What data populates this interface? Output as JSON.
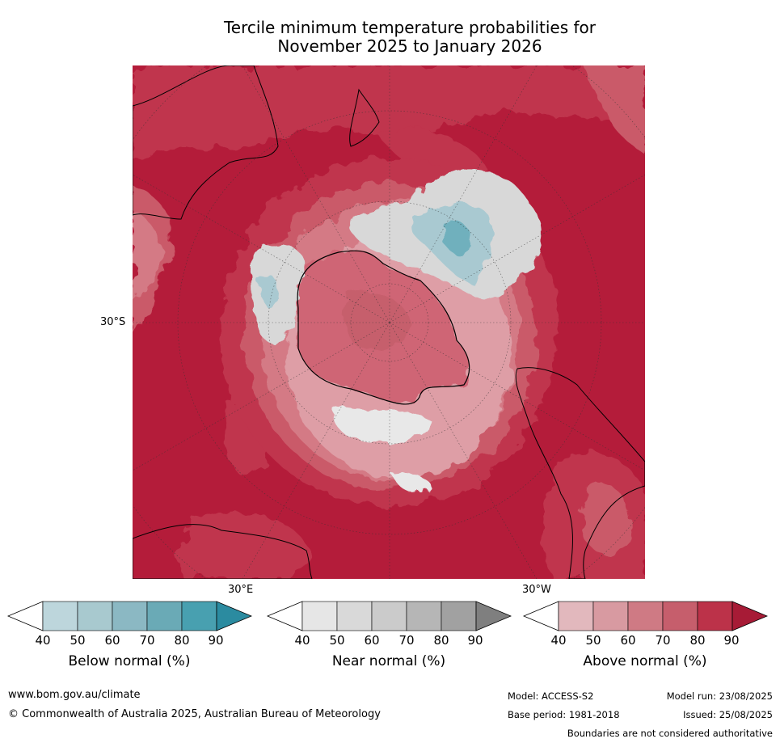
{
  "title": {
    "line1": "Tercile minimum temperature probabilities for",
    "line2": "November 2025 to January 2026"
  },
  "map": {
    "projection": "south polar stereographic",
    "lat_label": "30°S",
    "lon_labels": [
      "30°E",
      "30°W"
    ],
    "dominant_category": "Above normal",
    "colors": {
      "above_90": "#b41c3a",
      "above_80": "#c0344d",
      "above_70": "#ca5a69",
      "above_60": "#d47a85",
      "above_50": "#de9ea6",
      "near": "#d8d8d8",
      "below": "#a9c9d1",
      "below_deep": "#6fb0bd",
      "land_outline": "#000000"
    }
  },
  "colorbars": [
    {
      "label": "Below normal (%)",
      "ticks": [
        "40",
        "50",
        "60",
        "70",
        "80",
        "90"
      ],
      "colors": [
        "#ffffff",
        "#bdd6dc",
        "#a8c9cf",
        "#8bb8c3",
        "#6aaab6",
        "#48a0b0",
        "#2b8ba0"
      ]
    },
    {
      "label": "Near normal (%)",
      "ticks": [
        "40",
        "50",
        "60",
        "70",
        "80",
        "90"
      ],
      "colors": [
        "#ffffff",
        "#e6e6e6",
        "#d9d9d9",
        "#cbcbcb",
        "#b6b6b6",
        "#a1a1a1",
        "#7f7f7f"
      ]
    },
    {
      "label": "Above normal (%)",
      "ticks": [
        "40",
        "50",
        "60",
        "70",
        "80",
        "90"
      ],
      "colors": [
        "#ffffff",
        "#e2b8bd",
        "#d89aa1",
        "#cf7a84",
        "#c65e6c",
        "#bc3249",
        "#a71b36"
      ]
    }
  ],
  "footer": {
    "website": "www.bom.gov.au/climate",
    "copyright": "© Commonwealth of Australia 2025, Australian Bureau of Meteorology",
    "model": "Model: ACCESS-S2",
    "model_run": "Model run: 23/08/2025",
    "base_period": "Base period: 1981-2018",
    "issued": "Issued: 25/08/2025",
    "disclaimer": "Boundaries are not considered authoritative"
  }
}
